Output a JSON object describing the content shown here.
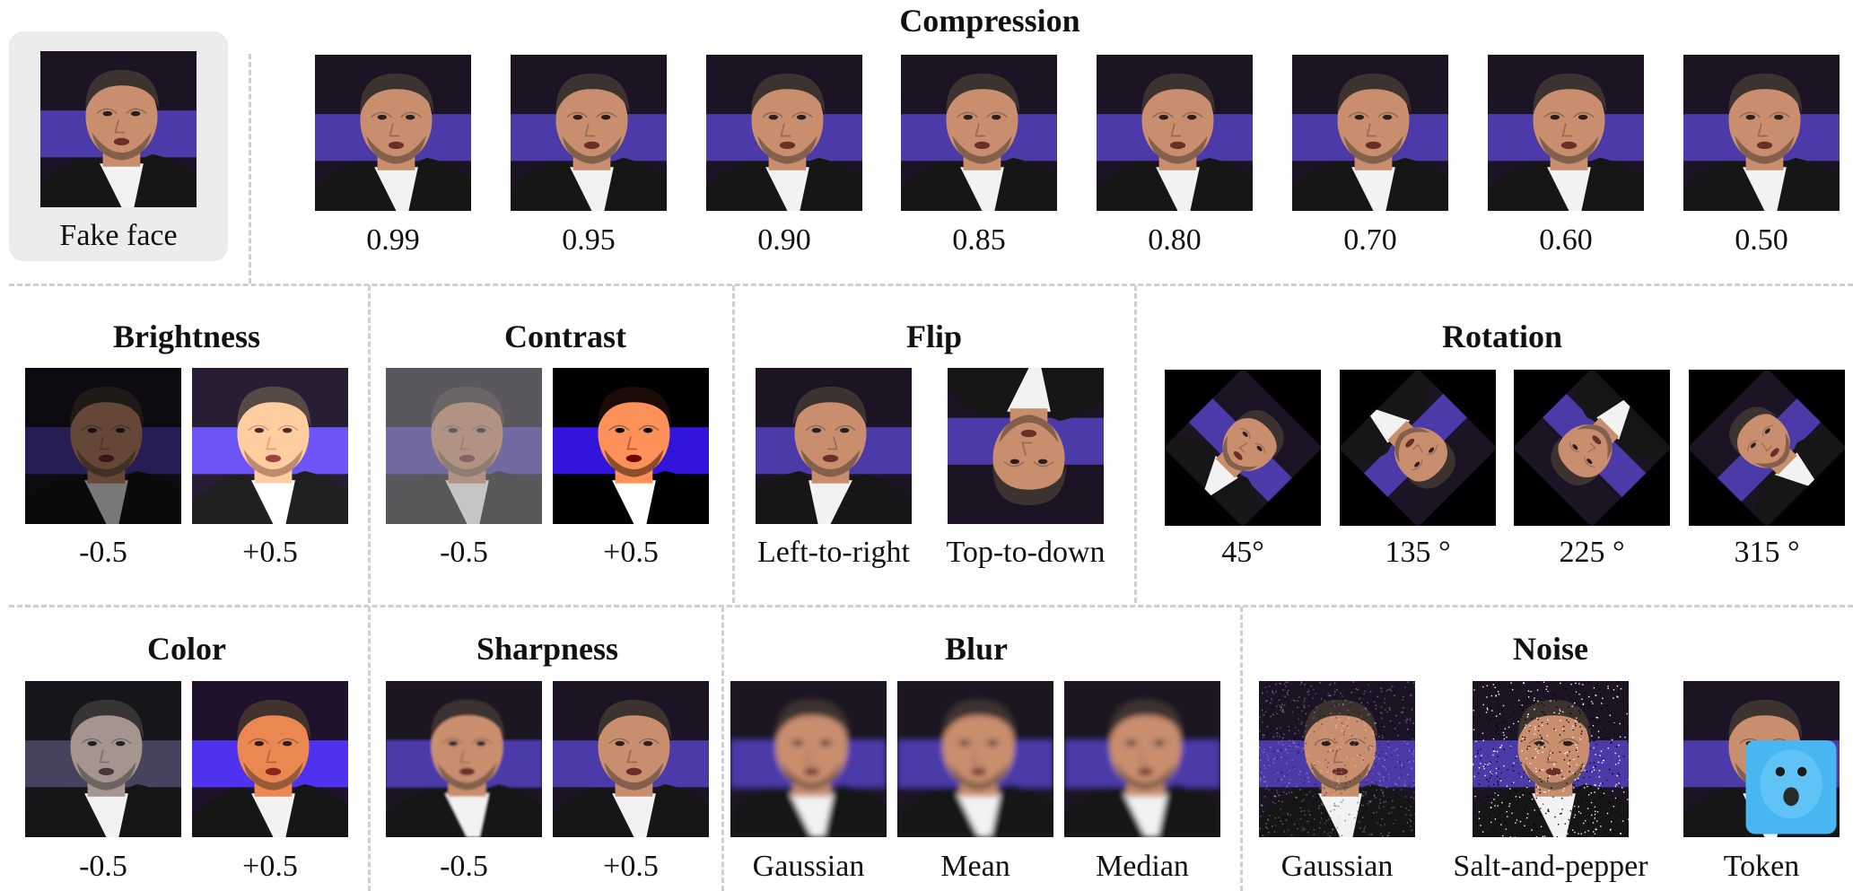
{
  "original": {
    "caption": "Fake face"
  },
  "sections": {
    "compression": {
      "title": "Compression",
      "labels": [
        "0.99",
        "0.95",
        "0.90",
        "0.85",
        "0.80",
        "0.70",
        "0.60",
        "0.50"
      ]
    },
    "brightness": {
      "title": "Brightness",
      "labels": [
        "-0.5",
        "+0.5"
      ]
    },
    "contrast": {
      "title": "Contrast",
      "labels": [
        "-0.5",
        "+0.5"
      ]
    },
    "flip": {
      "title": "Flip",
      "labels": [
        "Left-to-right",
        "Top-to-down"
      ]
    },
    "rotation": {
      "title": "Rotation",
      "labels": [
        "45°",
        "135 °",
        "225 °",
        "315 °"
      ]
    },
    "color": {
      "title": "Color",
      "labels": [
        "-0.5",
        "+0.5"
      ]
    },
    "sharpness": {
      "title": "Sharpness",
      "labels": [
        "-0.5",
        "+0.5"
      ]
    },
    "blur": {
      "title": "Blur",
      "labels": [
        "Gaussian",
        "Mean",
        "Median"
      ]
    },
    "noise": {
      "title": "Noise",
      "labels": [
        "Gaussian",
        "Salt-and-pepper",
        "Token"
      ]
    }
  },
  "colors": {
    "background_dark": "#1c1424",
    "band_purple": "#4b3aa8",
    "skin": "#c98e6e",
    "hair": "#3c3330",
    "suit": "#161616",
    "shirt": "#f2f2f2",
    "divider": "#cfcfcf",
    "token_blue": "#48b6f0"
  }
}
